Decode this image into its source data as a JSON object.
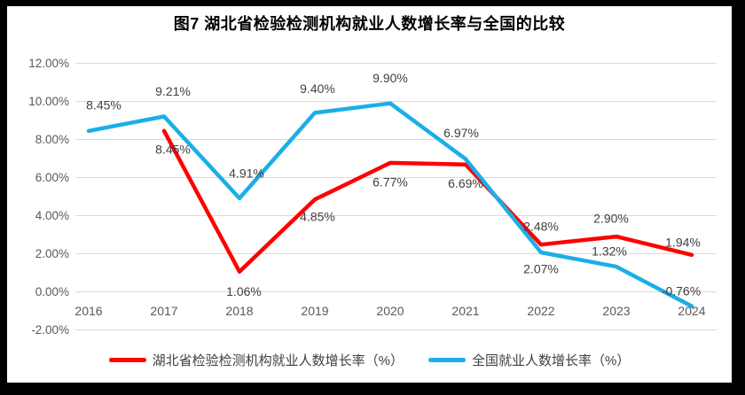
{
  "chart_data": {
    "type": "line",
    "title": "图7 湖北省检验检测机构就业人数增长率与全国的比较",
    "x_categories": [
      "2016",
      "2017",
      "2018",
      "2019",
      "2020",
      "2021",
      "2022",
      "2023",
      "2024"
    ],
    "y_axis": {
      "min": -2,
      "max": 12,
      "step": 2,
      "tick_labels": [
        "12.00%",
        "10.00%",
        "8.00%",
        "6.00%",
        "4.00%",
        "2.00%",
        "0.00%",
        "-2.00%"
      ]
    },
    "grid": true,
    "gridline_color": "#D9D9D9",
    "legend_position": "bottom",
    "series": [
      {
        "name": "湖北省检验检测机构就业人数增长率（%）",
        "color": "#FF0000",
        "points": [
          {
            "category": "2017",
            "value": 8.45,
            "label": "8.45%",
            "label_dx": 10,
            "label_dy": 21
          },
          {
            "category": "2018",
            "value": 1.06,
            "label": "1.06%",
            "label_dx": 5,
            "label_dy": 23
          },
          {
            "category": "2019",
            "value": 4.85,
            "label": "4.85%",
            "label_dx": 3,
            "label_dy": 20
          },
          {
            "category": "2020",
            "value": 6.77,
            "label": "6.77%",
            "label_dx": 0,
            "label_dy": 22
          },
          {
            "category": "2021",
            "value": 6.69,
            "label": "6.69%",
            "label_dx": 0,
            "label_dy": 22
          },
          {
            "category": "2022",
            "value": 2.48,
            "label": "2.48%",
            "label_dx": 0,
            "label_dy": -20
          },
          {
            "category": "2023",
            "value": 2.9,
            "label": "2.90%",
            "label_dx": -6,
            "label_dy": -20
          },
          {
            "category": "2024",
            "value": 1.94,
            "label": "1.94%",
            "label_dx": -10,
            "label_dy": -14
          }
        ]
      },
      {
        "name": "全国就业人数增长率（%）",
        "color": "#1BAEE8",
        "points": [
          {
            "category": "2016",
            "value": 8.45,
            "label": "8.45%",
            "label_dx": 17,
            "label_dy": -29
          },
          {
            "category": "2017",
            "value": 9.21,
            "label": "9.21%",
            "label_dx": 10,
            "label_dy": -28
          },
          {
            "category": "2018",
            "value": 4.91,
            "label": "4.91%",
            "label_dx": 8,
            "label_dy": -28
          },
          {
            "category": "2019",
            "value": 9.4,
            "label": "9.40%",
            "label_dx": 3,
            "label_dy": -27
          },
          {
            "category": "2020",
            "value": 9.9,
            "label": "9.90%",
            "label_dx": 0,
            "label_dy": -28
          },
          {
            "category": "2021",
            "value": 6.97,
            "label": "6.97%",
            "label_dx": -5,
            "label_dy": -29
          },
          {
            "category": "2022",
            "value": 2.07,
            "label": "2.07%",
            "label_dx": 0,
            "label_dy": 19
          },
          {
            "category": "2023",
            "value": 1.32,
            "label": "1.32%",
            "label_dx": -8,
            "label_dy": -17
          },
          {
            "category": "2024",
            "value": -0.76,
            "label": "-0.76%",
            "label_dx": -12,
            "label_dy": -17
          }
        ]
      }
    ]
  }
}
